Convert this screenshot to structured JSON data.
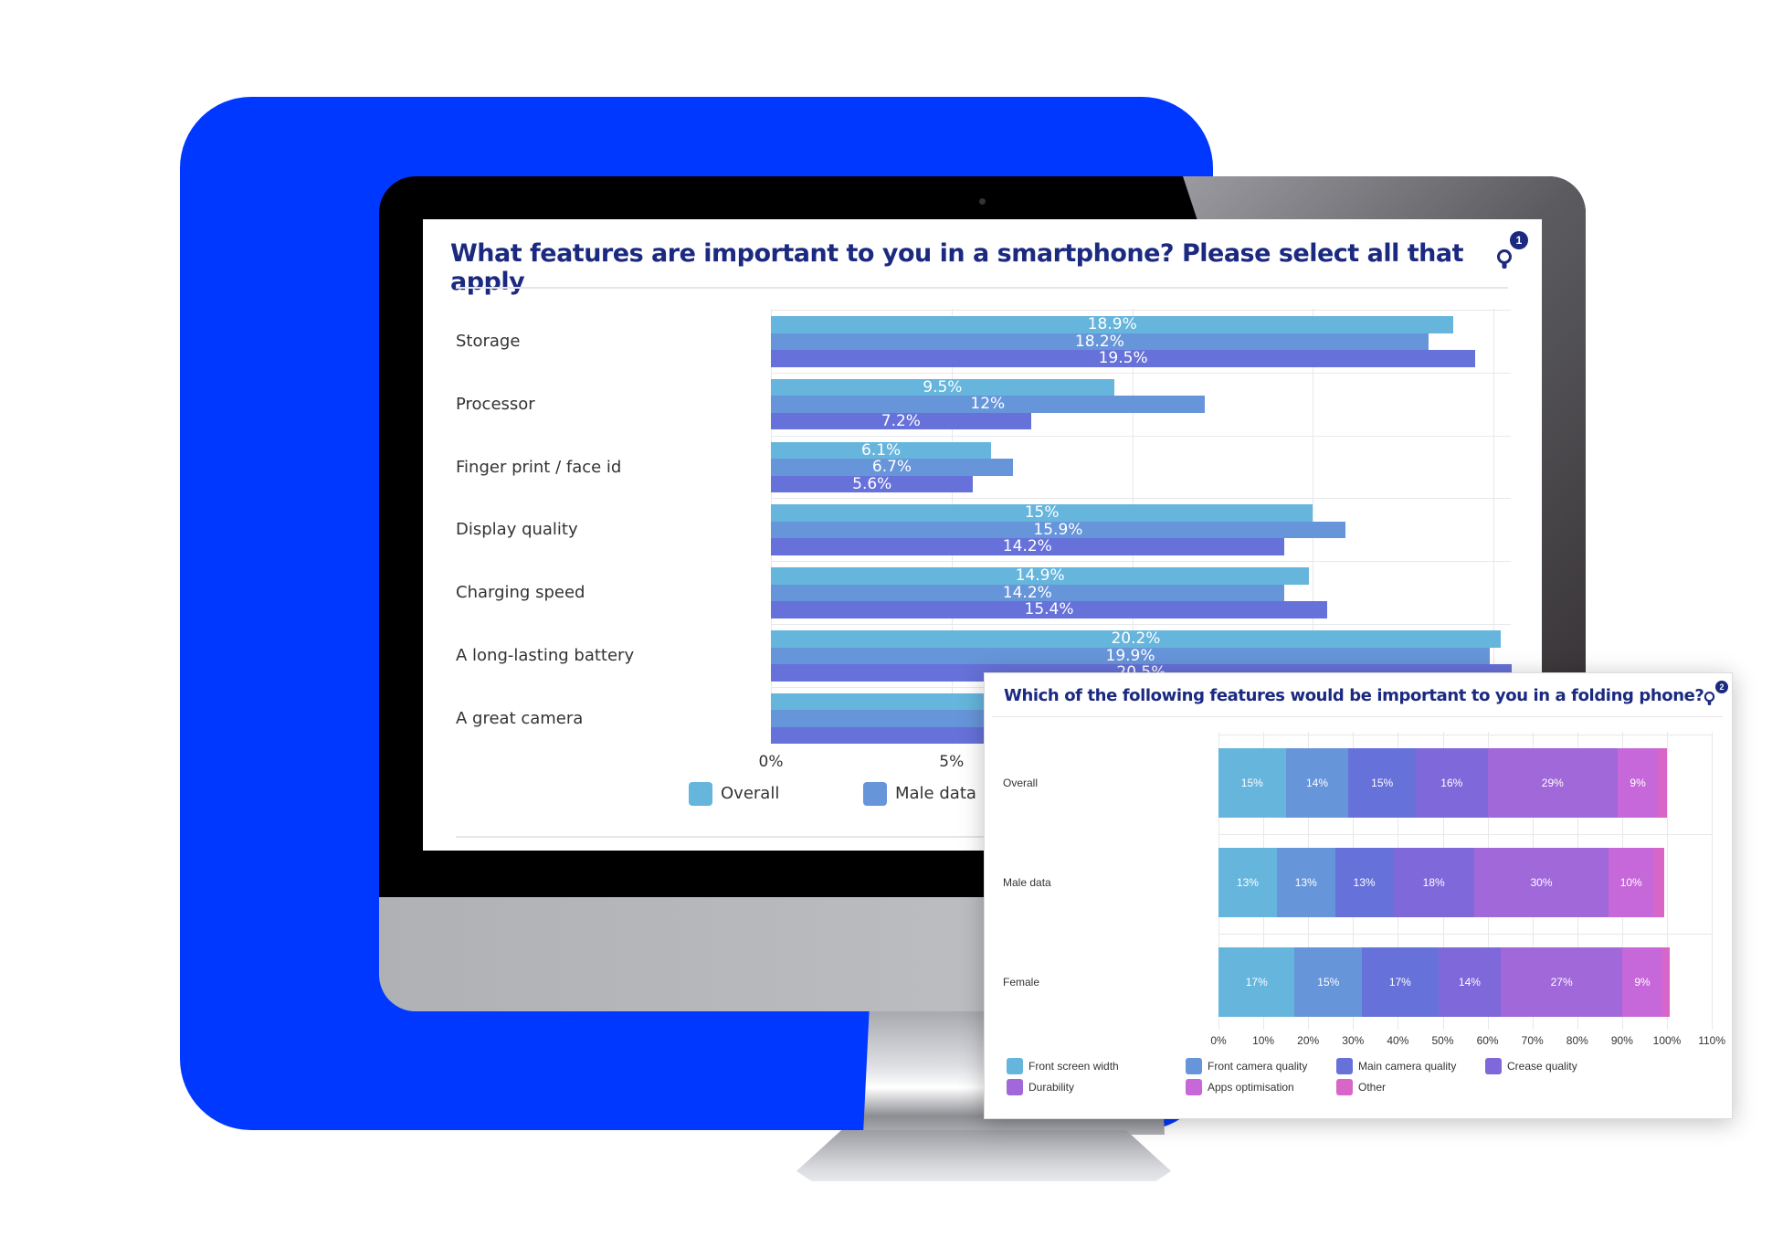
{
  "chart_data": [
    {
      "type": "bar",
      "orientation": "horizontal",
      "title": "What features are important to you in a smartphone? Please select all that apply",
      "badge": "1",
      "categories": [
        "Storage",
        "Processor",
        "Finger print / face id",
        "Display quality",
        "Charging speed",
        "A long-lasting battery",
        "A great camera"
      ],
      "series": [
        {
          "name": "Overall",
          "color": "#65b5dc",
          "values": [
            18.9,
            9.5,
            6.1,
            15,
            14.9,
            20.2,
            null
          ],
          "labels": [
            "18.9%",
            "9.5%",
            "6.1%",
            "15%",
            "14.9%",
            "20.2%",
            null
          ]
        },
        {
          "name": "Male data",
          "color": "#6795d9",
          "values": [
            18.2,
            12,
            6.7,
            15.9,
            14.2,
            19.9,
            null
          ],
          "labels": [
            "18.2%",
            "12%",
            "6.7%",
            "15.9%",
            "14.2%",
            "19.9%",
            null
          ]
        },
        {
          "color": "#6671d9",
          "values": [
            19.5,
            7.2,
            5.6,
            14.2,
            15.4,
            20.5,
            null
          ],
          "labels": [
            "19.5%",
            "7.2%",
            "5.6%",
            "14.2%",
            "15.4%",
            "20.5%",
            null
          ]
        }
      ],
      "x_ticks": [
        "0%",
        "5%"
      ],
      "x_tick_values": [
        0,
        5
      ],
      "grid_values": [
        0,
        5,
        10,
        15,
        20
      ],
      "xlim": [
        0,
        20.5
      ],
      "grid": true,
      "legend_position": "bottom"
    },
    {
      "type": "bar",
      "orientation": "horizontal",
      "stacked": true,
      "title": "Which of the following features would be important to you in a folding phone?",
      "badge": "2",
      "categories": [
        "Overall",
        "Male data",
        "Female"
      ],
      "series": [
        {
          "name": "Front screen width",
          "color": "#65b5dc",
          "values": [
            15,
            13,
            17
          ],
          "labels": [
            "15%",
            "13%",
            "17%"
          ]
        },
        {
          "name": "Front camera quality",
          "color": "#6795d9",
          "values": [
            14,
            13,
            15
          ],
          "labels": [
            "14%",
            "13%",
            "15%"
          ]
        },
        {
          "name": "Main camera quality",
          "color": "#6671d9",
          "values": [
            15,
            13,
            17
          ],
          "labels": [
            "15%",
            "13%",
            "17%"
          ]
        },
        {
          "name": "Crease quality",
          "color": "#7f68d9",
          "values": [
            16,
            18,
            14
          ],
          "labels": [
            "16%",
            "18%",
            "14%"
          ]
        },
        {
          "name": "Durability",
          "color": "#a068d9",
          "values": [
            29,
            30,
            27
          ],
          "labels": [
            "29%",
            "30%",
            "27%"
          ]
        },
        {
          "name": "Apps optimisation",
          "color": "#c668d9",
          "values": [
            9,
            10,
            9
          ],
          "labels": [
            "9%",
            "10%",
            "9%"
          ]
        },
        {
          "name": "Other",
          "color": "#d866c9",
          "values": [
            2,
            2.4,
            1.7
          ],
          "labels": [
            "",
            "",
            ""
          ]
        }
      ],
      "x_ticks": [
        "0%",
        "10%",
        "20%",
        "30%",
        "40%",
        "50%",
        "60%",
        "70%",
        "80%",
        "90%",
        "100%",
        "110%"
      ],
      "xlim": [
        0,
        110
      ],
      "grid": true,
      "legend_position": "bottom"
    }
  ],
  "colors": {
    "background_accent": "#0038ff",
    "title": "#1b2a80"
  }
}
